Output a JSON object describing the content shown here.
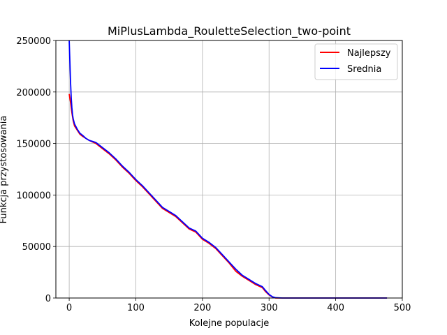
{
  "chart_data": {
    "type": "line",
    "title": "MiPlusLambda_RouletteSelection_two-point",
    "xlabel": "Kolejne populacje",
    "ylabel": "Funkcja przystosowania",
    "xlim": [
      -20,
      500
    ],
    "ylim": [
      0,
      250000
    ],
    "xticks": [
      0,
      100,
      200,
      300,
      400,
      500
    ],
    "xtick_labels": [
      "0",
      "100",
      "200",
      "300",
      "400",
      "500"
    ],
    "yticks": [
      0,
      50000,
      100000,
      150000,
      200000,
      250000
    ],
    "ytick_labels": [
      "0",
      "50000",
      "100000",
      "150000",
      "200000",
      "250000"
    ],
    "grid": true,
    "legend_position": "top-right",
    "series": [
      {
        "name": "Najlepszy",
        "color": "#ff0000",
        "x": [
          0,
          2,
          4,
          6,
          8,
          12,
          16,
          20,
          25,
          30,
          40,
          50,
          60,
          70,
          80,
          90,
          100,
          110,
          120,
          130,
          140,
          150,
          160,
          170,
          180,
          190,
          200,
          210,
          220,
          230,
          240,
          250,
          260,
          270,
          280,
          290,
          295,
          300,
          305,
          310,
          320,
          350,
          400,
          450,
          477
        ],
        "values": [
          198000,
          190000,
          180000,
          172000,
          167000,
          163000,
          159000,
          157000,
          155000,
          153000,
          150000,
          145000,
          140000,
          134000,
          127000,
          121000,
          114000,
          108000,
          101000,
          94000,
          87000,
          83000,
          79000,
          73000,
          67000,
          64000,
          57000,
          53000,
          48000,
          41000,
          34000,
          26000,
          21000,
          17000,
          13000,
          10000,
          6000,
          3000,
          1000,
          0,
          0,
          0,
          0,
          0,
          0
        ]
      },
      {
        "name": "Srednia",
        "color": "#0000ff",
        "x": [
          0,
          1,
          2,
          3,
          4,
          5,
          6,
          8,
          12,
          16,
          20,
          25,
          30,
          40,
          50,
          60,
          70,
          80,
          90,
          100,
          110,
          120,
          130,
          140,
          150,
          160,
          170,
          180,
          190,
          200,
          210,
          220,
          230,
          240,
          250,
          260,
          270,
          280,
          290,
          295,
          300,
          305,
          310,
          320,
          350,
          400,
          450,
          477
        ],
        "values": [
          250000,
          230000,
          210000,
          195000,
          185000,
          178000,
          174000,
          169000,
          164000,
          160000,
          158000,
          155000,
          153000,
          151000,
          146000,
          141000,
          135000,
          128000,
          122000,
          115000,
          109000,
          102000,
          95000,
          88000,
          84000,
          80000,
          74000,
          68000,
          65000,
          58000,
          54000,
          49000,
          42000,
          35000,
          28000,
          22000,
          18000,
          14000,
          11000,
          7000,
          3500,
          1200,
          300,
          0,
          0,
          0,
          0,
          0
        ]
      }
    ]
  }
}
